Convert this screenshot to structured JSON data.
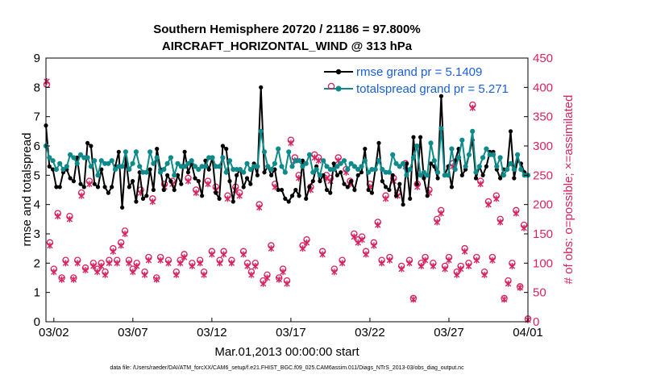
{
  "chart_data": {
    "type": "line",
    "title_line1": "Southern Hemisphere 20720 / 21186 = 97.800%",
    "title_line2": "AIRCRAFT_HORIZONTAL_WIND @ 313 hPa",
    "xlabel": "Mar.01,2013 00:00:00 start",
    "ylabel_left": "rmse and totalspread",
    "ylabel_right": "# of obs: o=possible; ×=assimilated",
    "ylim_left": [
      0,
      9
    ],
    "ylim_right": [
      0,
      450
    ],
    "xlim_days": [
      0.5,
      31
    ],
    "x_ticks": [
      {
        "day": 1,
        "label": "03/02"
      },
      {
        "day": 6,
        "label": "03/07"
      },
      {
        "day": 11,
        "label": "03/12"
      },
      {
        "day": 16,
        "label": "03/17"
      },
      {
        "day": 21,
        "label": "03/22"
      },
      {
        "day": 26,
        "label": "03/27"
      },
      {
        "day": 31,
        "label": "04/01"
      }
    ],
    "y_ticks_left": [
      "0",
      "1",
      "2",
      "3",
      "4",
      "5",
      "6",
      "7",
      "8",
      "9"
    ],
    "y_ticks_right": [
      "0",
      "50",
      "100",
      "150",
      "200",
      "250",
      "300",
      "350",
      "400",
      "450"
    ],
    "footnote": "data file: /Users/raeder/DAI/ATM_forcXX/CAM6_setup/f.e21.FHIST_BGC.f09_025.CAM6assim.011/Diags_NTrS_2013-03/obs_diag_output.nc",
    "colors": {
      "rmse": "#000000",
      "spread": "#0e8a8a",
      "obs": "#d6245f",
      "legend_text": "#1a5fd6",
      "right_axis": "#d6245f"
    },
    "series": [
      {
        "name": "rmse",
        "legend": "rmse grand pr = 5.1409",
        "values": [
          6.7,
          5.3,
          5.2,
          4.6,
          4.6,
          5.1,
          5.2,
          4.9,
          4.8,
          5.6,
          4.7,
          4.6,
          6.1,
          6.0,
          4.7,
          4.6,
          5.2,
          4.6,
          4.4,
          4.6,
          5.3,
          5.8,
          3.9,
          5.6,
          4.6,
          4.8,
          4.1,
          5.1,
          4.2,
          4.3,
          5.2,
          4.5,
          5.9,
          5.2,
          4.5,
          5.0,
          4.8,
          4.5,
          5.0,
          4.7,
          5.8,
          5.1,
          5.4,
          4.9,
          4.8,
          4.3,
          5.5,
          5.2,
          5.6,
          4.4,
          4.2,
          6.0,
          5.9,
          4.8,
          4.1,
          5.0,
          5.2,
          4.6,
          4.9,
          4.7,
          5.4,
          5.0,
          8.0,
          5.1,
          5.3,
          5.0,
          5.2,
          4.5,
          4.5,
          4.2,
          4.1,
          4.3,
          4.5,
          4.3,
          5.5,
          4.2,
          4.6,
          4.8,
          5.3,
          4.8,
          5.0,
          4.5,
          4.4,
          5.4,
          5.0,
          5.1,
          4.7,
          4.6,
          4.8,
          4.5,
          5.0,
          5.1,
          5.9,
          4.5,
          4.4,
          5.2,
          6.1,
          4.8,
          4.6,
          4.5,
          5.0,
          4.3,
          4.7,
          4.0,
          5.4,
          4.2,
          6.3,
          4.7,
          6.3,
          4.9,
          4.3,
          5.4,
          5.3,
          4.9,
          7.7,
          5.0,
          5.3,
          4.6,
          5.5,
          5.9,
          5.0,
          5.2,
          5.7,
          6.2,
          4.9,
          5.3,
          5.0,
          5.3,
          5.8,
          5.8,
          5.2,
          4.9,
          5.2,
          5.2,
          6.5,
          4.9,
          5.5,
          5.4,
          5.1,
          5.0
        ]
      },
      {
        "name": "totalspread",
        "legend": "totalspread grand pr = 5.271",
        "values": [
          6.0,
          5.6,
          5.5,
          5.2,
          5.4,
          5.2,
          5.3,
          5.7,
          5.6,
          5.4,
          5.7,
          5.6,
          5.6,
          5.3,
          5.5,
          5.0,
          5.5,
          5.4,
          5.4,
          5.5,
          5.2,
          5.3,
          5.3,
          5.8,
          5.2,
          5.4,
          5.8,
          5.3,
          5.1,
          5.1,
          5.8,
          5.4,
          5.6,
          5.1,
          5.2,
          5.4,
          5.6,
          5.0,
          5.4,
          5.3,
          5.3,
          5.4,
          5.5,
          5.3,
          5.2,
          5.3,
          5.3,
          5.6,
          5.6,
          5.3,
          5.3,
          5.6,
          5.1,
          5.5,
          5.2,
          5.2,
          5.2,
          5.1,
          5.4,
          5.2,
          5.3,
          5.3,
          6.5,
          5.8,
          5.3,
          5.2,
          5.4,
          5.9,
          5.3,
          5.1,
          5.8,
          5.3,
          5.5,
          5.5,
          5.3,
          5.4,
          5.7,
          5.1,
          5.2,
          5.0,
          5.5,
          5.3,
          5.2,
          5.2,
          5.3,
          5.4,
          5.5,
          5.2,
          5.4,
          5.3,
          5.2,
          5.3,
          5.5,
          5.1,
          5.2,
          5.2,
          5.5,
          5.2,
          5.1,
          5.1,
          5.7,
          5.4,
          5.3,
          5.4,
          5.0,
          5.2,
          5.6,
          6.0,
          5.0,
          5.1,
          5.0,
          6.1,
          5.5,
          5.1,
          6.6,
          5.0,
          5.0,
          5.9,
          5.2,
          5.6,
          6.2,
          5.3,
          5.7,
          6.5,
          5.1,
          5.3,
          5.6,
          5.9,
          5.7,
          5.7,
          5.3,
          5.6,
          5.0,
          5.2,
          5.4,
          5.2,
          5.7,
          5.2,
          5.0,
          5.0
        ]
      }
    ],
    "obs_possible": [
      [
        0.55,
        405
      ],
      [
        0.75,
        135
      ],
      [
        1.0,
        90
      ],
      [
        1.25,
        185
      ],
      [
        1.5,
        75
      ],
      [
        1.75,
        105
      ],
      [
        2.0,
        180
      ],
      [
        2.25,
        75
      ],
      [
        2.5,
        105
      ],
      [
        2.75,
        220
      ],
      [
        3.0,
        92
      ],
      [
        3.25,
        240
      ],
      [
        3.5,
        100
      ],
      [
        3.75,
        90
      ],
      [
        4.0,
        100
      ],
      [
        4.25,
        85
      ],
      [
        4.5,
        105
      ],
      [
        4.75,
        125
      ],
      [
        5.0,
        105
      ],
      [
        5.25,
        135
      ],
      [
        5.5,
        155
      ],
      [
        5.75,
        105
      ],
      [
        6.0,
        90
      ],
      [
        6.25,
        100
      ],
      [
        6.5,
        225
      ],
      [
        6.75,
        85
      ],
      [
        7.0,
        110
      ],
      [
        7.25,
        210
      ],
      [
        7.5,
        75
      ],
      [
        7.75,
        110
      ],
      [
        8.0,
        235
      ],
      [
        8.25,
        105
      ],
      [
        8.5,
        240
      ],
      [
        8.75,
        85
      ],
      [
        9.0,
        105
      ],
      [
        9.25,
        115
      ],
      [
        9.5,
        245
      ],
      [
        9.75,
        100
      ],
      [
        10.0,
        225
      ],
      [
        10.25,
        105
      ],
      [
        10.5,
        85
      ],
      [
        10.75,
        240
      ],
      [
        11.0,
        120
      ],
      [
        11.25,
        230
      ],
      [
        11.5,
        105
      ],
      [
        11.75,
        120
      ],
      [
        12.0,
        215
      ],
      [
        12.25,
        105
      ],
      [
        12.5,
        230
      ],
      [
        12.75,
        220
      ],
      [
        13.0,
        120
      ],
      [
        13.25,
        100
      ],
      [
        13.5,
        85
      ],
      [
        13.75,
        100
      ],
      [
        14.0,
        200
      ],
      [
        14.25,
        70
      ],
      [
        14.5,
        80
      ],
      [
        14.75,
        130
      ],
      [
        15.0,
        235
      ],
      [
        15.25,
        75
      ],
      [
        15.5,
        90
      ],
      [
        15.75,
        70
      ],
      [
        16.0,
        310
      ],
      [
        16.25,
        280
      ],
      [
        16.5,
        250
      ],
      [
        16.75,
        130
      ],
      [
        17.0,
        140
      ],
      [
        17.25,
        230
      ],
      [
        17.5,
        285
      ],
      [
        17.75,
        280
      ],
      [
        18.0,
        120
      ],
      [
        18.25,
        250
      ],
      [
        18.5,
        245
      ],
      [
        18.75,
        90
      ],
      [
        19.0,
        280
      ],
      [
        19.25,
        105
      ],
      [
        19.5,
        260
      ],
      [
        19.75,
        240
      ],
      [
        20.0,
        150
      ],
      [
        20.25,
        140
      ],
      [
        20.5,
        145
      ],
      [
        20.75,
        120
      ],
      [
        21.0,
        235
      ],
      [
        21.25,
        135
      ],
      [
        21.5,
        170
      ],
      [
        21.75,
        105
      ],
      [
        22.0,
        215
      ],
      [
        22.25,
        110
      ],
      [
        22.5,
        245
      ],
      [
        22.75,
        220
      ],
      [
        23.0,
        95
      ],
      [
        23.25,
        270
      ],
      [
        23.5,
        105
      ],
      [
        23.75,
        40
      ],
      [
        24.0,
        235
      ],
      [
        24.25,
        100
      ],
      [
        24.5,
        110
      ],
      [
        24.75,
        225
      ],
      [
        25.0,
        100
      ],
      [
        25.25,
        175
      ],
      [
        25.5,
        190
      ],
      [
        25.75,
        95
      ],
      [
        26.0,
        110
      ],
      [
        26.25,
        270
      ],
      [
        26.5,
        85
      ],
      [
        26.75,
        95
      ],
      [
        27.0,
        125
      ],
      [
        27.25,
        100
      ],
      [
        27.5,
        370
      ],
      [
        27.75,
        110
      ],
      [
        28.0,
        240
      ],
      [
        28.25,
        85
      ],
      [
        28.5,
        205
      ],
      [
        28.75,
        110
      ],
      [
        29.0,
        215
      ],
      [
        29.25,
        175
      ],
      [
        29.5,
        40
      ],
      [
        29.75,
        70
      ],
      [
        30.0,
        100
      ],
      [
        30.25,
        190
      ],
      [
        30.5,
        60
      ],
      [
        30.75,
        165
      ],
      [
        31.0,
        5
      ]
    ],
    "obs_assimilated": [
      [
        0.55,
        410
      ],
      [
        0.75,
        130
      ],
      [
        1.0,
        85
      ],
      [
        1.25,
        180
      ],
      [
        1.5,
        72
      ],
      [
        1.75,
        100
      ],
      [
        2.0,
        175
      ],
      [
        2.25,
        72
      ],
      [
        2.5,
        100
      ],
      [
        2.75,
        215
      ],
      [
        3.0,
        88
      ],
      [
        3.25,
        235
      ],
      [
        3.5,
        95
      ],
      [
        3.75,
        85
      ],
      [
        4.0,
        95
      ],
      [
        4.25,
        80
      ],
      [
        4.5,
        100
      ],
      [
        4.75,
        120
      ],
      [
        5.0,
        100
      ],
      [
        5.25,
        130
      ],
      [
        5.5,
        150
      ],
      [
        5.75,
        100
      ],
      [
        6.0,
        85
      ],
      [
        6.25,
        95
      ],
      [
        6.5,
        220
      ],
      [
        6.75,
        80
      ],
      [
        7.0,
        105
      ],
      [
        7.25,
        205
      ],
      [
        7.5,
        72
      ],
      [
        7.75,
        105
      ],
      [
        8.0,
        230
      ],
      [
        8.25,
        100
      ],
      [
        8.5,
        235
      ],
      [
        8.75,
        80
      ],
      [
        9.0,
        100
      ],
      [
        9.25,
        110
      ],
      [
        9.5,
        240
      ],
      [
        9.75,
        95
      ],
      [
        10.0,
        220
      ],
      [
        10.25,
        100
      ],
      [
        10.5,
        80
      ],
      [
        10.75,
        235
      ],
      [
        11.0,
        115
      ],
      [
        11.25,
        225
      ],
      [
        11.5,
        100
      ],
      [
        11.75,
        115
      ],
      [
        12.0,
        210
      ],
      [
        12.25,
        100
      ],
      [
        12.5,
        225
      ],
      [
        12.75,
        215
      ],
      [
        13.0,
        115
      ],
      [
        13.25,
        95
      ],
      [
        13.5,
        80
      ],
      [
        13.75,
        95
      ],
      [
        14.0,
        195
      ],
      [
        14.25,
        65
      ],
      [
        14.5,
        75
      ],
      [
        14.75,
        125
      ],
      [
        15.0,
        230
      ],
      [
        15.25,
        72
      ],
      [
        15.5,
        85
      ],
      [
        15.75,
        65
      ],
      [
        16.0,
        305
      ],
      [
        16.25,
        275
      ],
      [
        16.5,
        245
      ],
      [
        16.75,
        125
      ],
      [
        17.0,
        135
      ],
      [
        17.25,
        225
      ],
      [
        17.5,
        280
      ],
      [
        17.75,
        275
      ],
      [
        18.0,
        115
      ],
      [
        18.25,
        245
      ],
      [
        18.5,
        240
      ],
      [
        18.75,
        85
      ],
      [
        19.0,
        275
      ],
      [
        19.25,
        100
      ],
      [
        19.5,
        255
      ],
      [
        19.75,
        235
      ],
      [
        20.0,
        145
      ],
      [
        20.25,
        135
      ],
      [
        20.5,
        140
      ],
      [
        20.75,
        115
      ],
      [
        21.0,
        230
      ],
      [
        21.25,
        130
      ],
      [
        21.5,
        165
      ],
      [
        21.75,
        100
      ],
      [
        22.0,
        210
      ],
      [
        22.25,
        105
      ],
      [
        22.5,
        240
      ],
      [
        22.75,
        215
      ],
      [
        23.0,
        90
      ],
      [
        23.25,
        265
      ],
      [
        23.5,
        100
      ],
      [
        23.75,
        38
      ],
      [
        24.0,
        230
      ],
      [
        24.25,
        95
      ],
      [
        24.5,
        105
      ],
      [
        24.75,
        220
      ],
      [
        25.0,
        95
      ],
      [
        25.25,
        170
      ],
      [
        25.5,
        185
      ],
      [
        25.75,
        90
      ],
      [
        26.0,
        105
      ],
      [
        26.25,
        265
      ],
      [
        26.5,
        80
      ],
      [
        26.75,
        90
      ],
      [
        27.0,
        120
      ],
      [
        27.25,
        95
      ],
      [
        27.5,
        365
      ],
      [
        27.75,
        105
      ],
      [
        28.0,
        235
      ],
      [
        28.25,
        80
      ],
      [
        28.5,
        200
      ],
      [
        28.75,
        105
      ],
      [
        29.0,
        210
      ],
      [
        29.25,
        170
      ],
      [
        29.5,
        38
      ],
      [
        29.75,
        65
      ],
      [
        30.0,
        95
      ],
      [
        30.25,
        185
      ],
      [
        30.5,
        58
      ],
      [
        30.75,
        160
      ],
      [
        31.0,
        3
      ]
    ]
  }
}
